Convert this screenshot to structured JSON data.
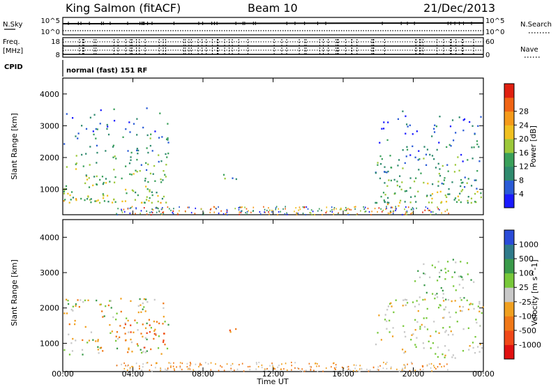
{
  "header": {
    "station": "King Salmon (fitACF)",
    "beam": "Beam 10",
    "date": "21/Dec/2013"
  },
  "strips": {
    "nsky_label": "N.Sky",
    "nsearch_label": "N.Search",
    "nsky_ticks": [
      "10^5",
      "10^0"
    ],
    "nsearch_ticks": [
      "10^5",
      "10^0"
    ],
    "freq_label": "Freq.",
    "freq_unit": "[MHz]",
    "freq_ticks": [
      "18",
      "8"
    ],
    "nave_label": "Nave",
    "nave_ticks": [
      "60",
      "0"
    ],
    "cpid_label": "CPID",
    "cpid_text": "normal (fast) 151 RF"
  },
  "chart_data": [
    {
      "type": "heatmap",
      "name": "power",
      "ylabel": "Slant Range [km]",
      "xlabel": "",
      "xlim": [
        "00:00",
        "24:00"
      ],
      "ylim": [
        200,
        4500
      ],
      "yticks": [
        1000,
        2000,
        3000,
        4000
      ],
      "colorbar": {
        "label": "Power [dB]",
        "ticks": [
          4,
          8,
          12,
          16,
          20,
          24,
          28
        ],
        "colors": [
          "#1a1aff",
          "#2a5bd6",
          "#2f8a6e",
          "#3aa05a",
          "#9cc83a",
          "#f0c020",
          "#f59a1a",
          "#f06414",
          "#e02010"
        ]
      },
      "regions": [
        {
          "t_start": 0.0,
          "t_end": 6.0,
          "r_min": 600,
          "r_max": 3600,
          "level": 16
        },
        {
          "t_start": 8.8,
          "t_end": 10.0,
          "r_min": 1200,
          "r_max": 1500,
          "level": 10
        },
        {
          "t_start": 17.8,
          "t_end": 24.0,
          "r_min": 600,
          "r_max": 3500,
          "level": 14
        },
        {
          "t_start": 18.2,
          "t_end": 19.2,
          "r_min": 300,
          "r_max": 700,
          "level": 24
        }
      ]
    },
    {
      "type": "heatmap",
      "name": "velocity",
      "ylabel": "Slant Range [km]",
      "xlabel": "Time UT",
      "xlim": [
        "00:00",
        "24:00"
      ],
      "ylim": [
        200,
        4500
      ],
      "yticks": [
        1000,
        2000,
        3000,
        4000
      ],
      "xticks": [
        "00:00",
        "04:00",
        "08:00",
        "12:00",
        "16:00",
        "20:00",
        "00:00"
      ],
      "colorbar": {
        "label": "Velocity [m s^-1]",
        "ticks": [
          "1000",
          "500",
          "100",
          "25",
          "-25",
          "-100",
          "-500",
          "-1000"
        ],
        "colors": [
          "#2a4bd8",
          "#2f7a8a",
          "#3a9a4a",
          "#78c83a",
          "#c8c8c8",
          "#f0a020",
          "#f07818",
          "#f04818",
          "#e01010"
        ]
      }
    }
  ]
}
